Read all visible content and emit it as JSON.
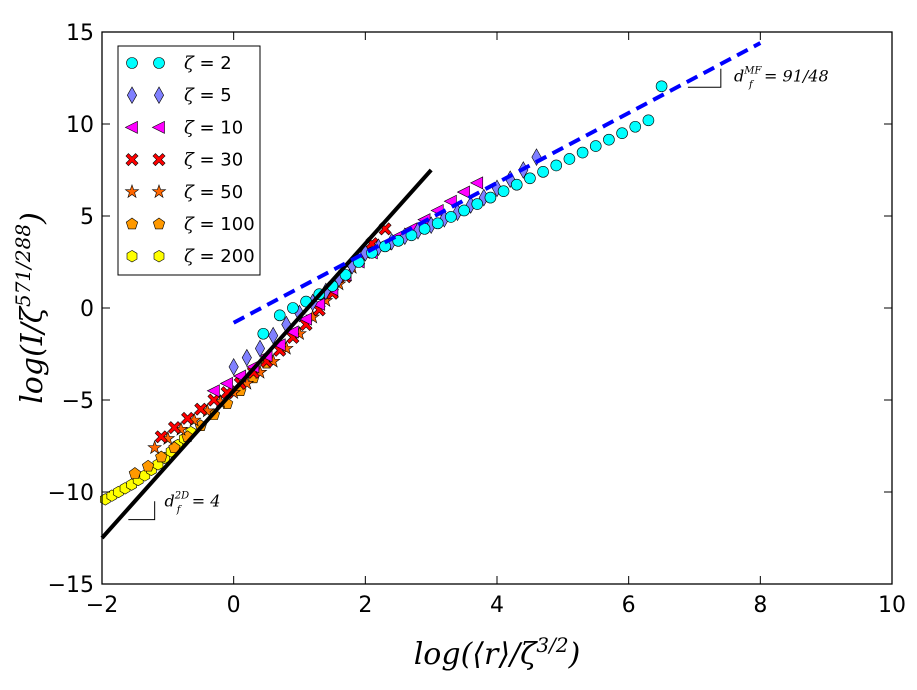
{
  "chart_data": {
    "type": "scatter",
    "xlabel": "log(⟨r⟩/ζ^{3/2})",
    "ylabel": "log(I/ζ^{571/288})",
    "xlim": [
      -2,
      10
    ],
    "ylim": [
      -15,
      15
    ],
    "xticks": [
      -2,
      0,
      2,
      4,
      6,
      8,
      10
    ],
    "yticks": [
      -15,
      -10,
      -5,
      0,
      5,
      10,
      15
    ],
    "xtick_labels": [
      "−2",
      "0",
      "2",
      "4",
      "6",
      "8",
      "10"
    ],
    "ytick_labels": [
      "−15",
      "−10",
      "−5",
      "0",
      "5",
      "10",
      "15"
    ],
    "legend_location": "upper-left",
    "series": [
      {
        "name": "ζ = 2",
        "label_prefix": "ζ",
        "label_value": "2",
        "marker": "circle",
        "color": "#00ffff",
        "x": [
          0.45,
          0.7,
          0.9,
          1.1,
          1.3,
          1.5,
          1.7,
          1.9,
          2.1,
          2.3,
          2.5,
          2.7,
          2.9,
          3.1,
          3.3,
          3.5,
          3.7,
          3.9,
          4.1,
          4.3,
          4.5,
          4.7,
          4.9,
          5.1,
          5.3,
          5.5,
          5.7,
          5.9,
          6.1,
          6.3,
          6.5
        ],
        "y": [
          -1.4,
          -0.4,
          0.0,
          0.35,
          0.75,
          1.2,
          1.8,
          2.5,
          3.0,
          3.35,
          3.65,
          3.95,
          4.3,
          4.6,
          4.95,
          5.3,
          5.65,
          6.0,
          6.35,
          6.7,
          7.05,
          7.4,
          7.75,
          8.1,
          8.45,
          8.8,
          9.15,
          9.5,
          9.85,
          10.2,
          12.05
        ]
      },
      {
        "name": "ζ = 5",
        "label_prefix": "ζ",
        "label_value": "5",
        "marker": "diamond",
        "color": "#8080ff",
        "x": [
          0.0,
          0.2,
          0.4,
          0.6,
          0.8,
          1.0,
          1.2,
          1.4,
          1.6,
          1.8,
          2.0,
          2.2,
          2.4,
          2.6,
          2.8,
          3.0,
          3.2,
          3.4,
          3.6,
          3.8,
          4.0,
          4.2,
          4.4,
          4.6
        ],
        "y": [
          -3.2,
          -2.7,
          -2.2,
          -1.5,
          -0.9,
          -0.3,
          0.3,
          0.9,
          1.6,
          2.3,
          3.0,
          3.3,
          3.6,
          3.9,
          4.2,
          4.5,
          4.85,
          5.2,
          5.6,
          6.0,
          6.5,
          7.0,
          7.5,
          8.2
        ]
      },
      {
        "name": "ζ = 10",
        "label_prefix": "ζ",
        "label_value": "10",
        "marker": "triangle-left",
        "color": "#ff00ff",
        "x": [
          -0.3,
          -0.1,
          0.1,
          0.3,
          0.5,
          0.7,
          0.9,
          1.1,
          1.3,
          1.5,
          1.7,
          1.9,
          2.1,
          2.3,
          2.5,
          2.7,
          2.9,
          3.1,
          3.3,
          3.5,
          3.7
        ],
        "y": [
          -4.5,
          -4.1,
          -3.7,
          -3.2,
          -2.6,
          -2.0,
          -1.3,
          -0.6,
          0.2,
          1.0,
          1.8,
          2.5,
          3.0,
          3.5,
          3.9,
          4.3,
          4.8,
          5.3,
          5.8,
          6.3,
          6.8
        ]
      },
      {
        "name": "ζ = 30",
        "label_prefix": "ζ",
        "label_value": "30",
        "marker": "x-filled",
        "color": "#ff0000",
        "x": [
          -1.1,
          -0.9,
          -0.7,
          -0.5,
          -0.3,
          -0.1,
          0.1,
          0.3,
          0.5,
          0.7,
          0.9,
          1.1,
          1.3,
          1.5,
          1.7,
          1.9,
          2.1,
          2.3
        ],
        "y": [
          -7.0,
          -6.5,
          -6.0,
          -5.5,
          -5.0,
          -4.6,
          -4.1,
          -3.5,
          -2.9,
          -2.3,
          -1.6,
          -0.9,
          -0.1,
          0.8,
          1.7,
          2.6,
          3.5,
          4.3
        ]
      },
      {
        "name": "ζ = 50",
        "label_prefix": "ζ",
        "label_value": "50",
        "marker": "star",
        "color": "#ff6600",
        "x": [
          -1.2,
          -1.0,
          -0.8,
          -0.6,
          -0.4,
          -0.2,
          0.0,
          0.2,
          0.4,
          0.6,
          0.8,
          1.0,
          1.2,
          1.4,
          1.6,
          1.8,
          2.0
        ],
        "y": [
          -7.6,
          -7.1,
          -6.6,
          -6.1,
          -5.6,
          -5.1,
          -4.6,
          -4.1,
          -3.5,
          -2.9,
          -2.2,
          -1.4,
          -0.5,
          0.4,
          1.3,
          2.2,
          3.0
        ]
      },
      {
        "name": "ζ = 100",
        "label_prefix": "ζ",
        "label_value": "100",
        "marker": "pentagon",
        "color": "#ff9900",
        "x": [
          -1.5,
          -1.3,
          -1.1,
          -0.9,
          -0.7,
          -0.5,
          -0.3,
          -0.1,
          0.1,
          0.3,
          0.5
        ],
        "y": [
          -9.0,
          -8.6,
          -8.1,
          -7.6,
          -7.0,
          -6.4,
          -5.8,
          -5.2,
          -4.5,
          -3.8,
          -3.0
        ]
      },
      {
        "name": "ζ = 200",
        "label_prefix": "ζ",
        "label_value": "200",
        "marker": "hexagon",
        "color": "#ffff00",
        "x": [
          -1.95,
          -1.85,
          -1.75,
          -1.65,
          -1.55,
          -1.45,
          -1.35,
          -1.25,
          -1.15,
          -1.05,
          -0.95,
          -0.85,
          -0.75,
          -0.65
        ],
        "y": [
          -10.4,
          -10.2,
          -10.0,
          -9.8,
          -9.6,
          -9.35,
          -9.1,
          -8.8,
          -8.5,
          -8.15,
          -7.8,
          -7.45,
          -7.1,
          -6.75
        ]
      }
    ],
    "fit_lines": [
      {
        "name": "d_f^2D = 4",
        "style": "solid",
        "color": "#000000",
        "x": [
          -2,
          3
        ],
        "y": [
          -12.5,
          7.5
        ]
      },
      {
        "name": "d_f^MF = 91/48",
        "style": "dashed",
        "color": "#0000ff",
        "x": [
          0,
          8
        ],
        "y": [
          -0.8,
          14.4
        ]
      }
    ],
    "annotations": [
      {
        "text": "d_f^{2D} = 4",
        "main": "d",
        "sub": "f",
        "sup": "2D",
        "rest": " = 4",
        "anchor": [
          -1.05,
          -10.8
        ],
        "slope_x": [
          -1.6,
          -1.2
        ],
        "slope_y": [
          -11.5,
          -10.5
        ]
      },
      {
        "text": "d_f^{MF} = 91/48",
        "main": "d",
        "sub": "f",
        "sup": "MF",
        "rest": " = 91/48",
        "anchor": [
          7.6,
          12.3
        ],
        "slope_x": [
          6.9,
          7.4
        ],
        "slope_y": [
          12.0,
          13.0
        ]
      }
    ]
  }
}
